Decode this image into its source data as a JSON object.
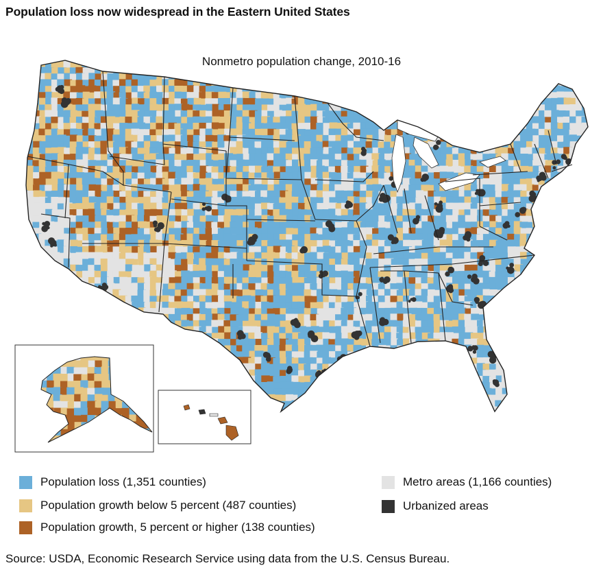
{
  "title": "Population loss now widespread in the Eastern United States",
  "subtitle": "Nonmetro population change, 2010-16",
  "legend": [
    {
      "key": "loss",
      "label": "Population loss (1,351 counties)",
      "color": "#6bafd9"
    },
    {
      "key": "growth_low",
      "label": "Population growth below 5 percent (487 counties)",
      "color": "#e6c683"
    },
    {
      "key": "growth_high",
      "label": "Population growth, 5 percent or higher (138 counties)",
      "color": "#ad6226"
    },
    {
      "key": "metro",
      "label": "Metro areas (1,166 counties)",
      "color": "#e3e3e3"
    },
    {
      "key": "urban",
      "label": "Urbanized areas",
      "color": "#333333"
    }
  ],
  "source": "Source: USDA, Economic Research Service using data from the U.S. Census Bureau.",
  "map": {
    "regions": [
      "Contiguous United States",
      "Alaska",
      "Hawaii"
    ],
    "boundary_color": "#222222"
  }
}
